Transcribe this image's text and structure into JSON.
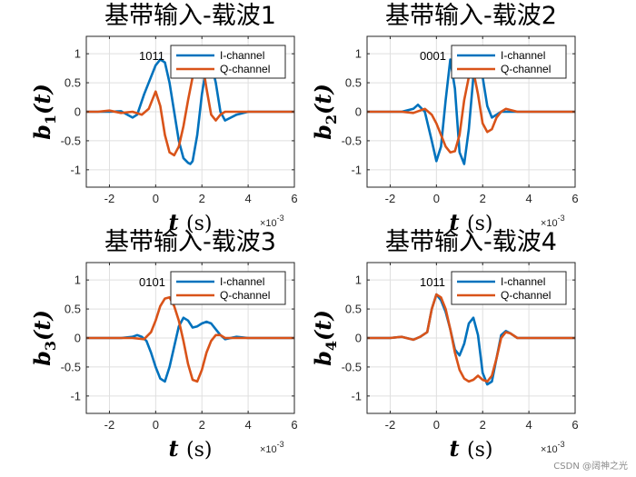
{
  "chart_data": [
    {
      "type": "line",
      "title": "基带输入-载波1",
      "ylabel_main": "b",
      "ylabel_sub": "1",
      "ylabel_arg": "(t)",
      "xlabel_var": "t",
      "xlabel_unit": "(s)",
      "x_exponent": "×10",
      "x_exponent_power": "-3",
      "xlim": [
        -3,
        6
      ],
      "ylim": [
        -1.3,
        1.3
      ],
      "xticks": [
        "-2",
        "0",
        "2",
        "4",
        "6"
      ],
      "yticks": [
        "-1",
        "-0.5",
        "0",
        "0.5",
        "1"
      ],
      "bits_label": "1011",
      "grid": true,
      "legend_position": "top-right",
      "series": [
        {
          "name": "I-channel",
          "color": "#0072BD",
          "x": [
            -3,
            -2.5,
            -2,
            -1.5,
            -1,
            -0.8,
            -0.5,
            -0.2,
            0,
            0.2,
            0.4,
            0.6,
            0.8,
            1.0,
            1.2,
            1.4,
            1.5,
            1.6,
            1.8,
            2.0,
            2.2,
            2.4,
            2.6,
            2.8,
            3.0,
            3.5,
            4,
            5,
            6
          ],
          "y": [
            0,
            0,
            0,
            0.01,
            -0.1,
            -0.05,
            0.3,
            0.6,
            0.8,
            0.9,
            0.85,
            0.5,
            0,
            -0.5,
            -0.8,
            -0.88,
            -0.9,
            -0.85,
            -0.4,
            0.3,
            0.8,
            0.85,
            0.5,
            0,
            -0.15,
            -0.05,
            0,
            0,
            0
          ]
        },
        {
          "name": "Q-channel",
          "color": "#D95319",
          "x": [
            -3,
            -2.5,
            -2,
            -1.5,
            -1,
            -0.6,
            -0.3,
            0,
            0.2,
            0.4,
            0.6,
            0.8,
            1.0,
            1.2,
            1.4,
            1.6,
            1.8,
            2.0,
            2.2,
            2.4,
            2.6,
            2.8,
            3.0,
            3.5,
            4,
            5,
            6
          ],
          "y": [
            0,
            0,
            0.02,
            -0.02,
            0,
            -0.05,
            0.05,
            0.35,
            0.1,
            -0.4,
            -0.7,
            -0.75,
            -0.6,
            -0.25,
            0.2,
            0.6,
            0.95,
            0.9,
            0.4,
            -0.05,
            -0.15,
            -0.05,
            0,
            0,
            0,
            0,
            0
          ]
        }
      ]
    },
    {
      "type": "line",
      "title": "基带输入-载波2",
      "ylabel_main": "b",
      "ylabel_sub": "2",
      "ylabel_arg": "(t)",
      "xlabel_var": "t",
      "xlabel_unit": "(s)",
      "x_exponent": "×10",
      "x_exponent_power": "-3",
      "xlim": [
        -3,
        6
      ],
      "ylim": [
        -1.3,
        1.3
      ],
      "xticks": [
        "-2",
        "0",
        "2",
        "4",
        "6"
      ],
      "yticks": [
        "-1",
        "-0.5",
        "0",
        "0.5",
        "1"
      ],
      "bits_label": "0001",
      "grid": true,
      "legend_position": "top-right",
      "series": [
        {
          "name": "I-channel",
          "color": "#0072BD",
          "x": [
            -3,
            -2.5,
            -2,
            -1.5,
            -1,
            -0.8,
            -0.5,
            -0.2,
            0,
            0.2,
            0.4,
            0.6,
            0.8,
            1.0,
            1.2,
            1.4,
            1.6,
            1.8,
            2.0,
            2.2,
            2.4,
            2.6,
            2.8,
            3.0,
            3.5,
            4,
            5,
            6
          ],
          "y": [
            0,
            0,
            0,
            0,
            0.05,
            0.12,
            0,
            -0.5,
            -0.85,
            -0.6,
            0.2,
            0.9,
            0.4,
            -0.7,
            -0.9,
            -0.3,
            0.6,
            0.95,
            0.6,
            0.1,
            -0.1,
            -0.05,
            0,
            0,
            0,
            0,
            0,
            0
          ]
        },
        {
          "name": "Q-channel",
          "color": "#D95319",
          "x": [
            -3,
            -2.5,
            -2,
            -1.5,
            -1,
            -0.5,
            -0.2,
            0,
            0.2,
            0.4,
            0.6,
            0.8,
            1.0,
            1.2,
            1.4,
            1.6,
            1.8,
            2.0,
            2.2,
            2.4,
            2.6,
            2.8,
            3.0,
            3.5,
            4,
            5,
            6
          ],
          "y": [
            0,
            0,
            0,
            0,
            -0.02,
            0.05,
            -0.05,
            -0.2,
            -0.4,
            -0.6,
            -0.7,
            -0.68,
            -0.4,
            0.2,
            0.6,
            0.7,
            0.3,
            -0.2,
            -0.35,
            -0.3,
            -0.1,
            0,
            0.05,
            0,
            0,
            0,
            0
          ]
        }
      ]
    },
    {
      "type": "line",
      "title": "基带输入-载波3",
      "ylabel_main": "b",
      "ylabel_sub": "3",
      "ylabel_arg": "(t)",
      "xlabel_var": "t",
      "xlabel_unit": "(s)",
      "x_exponent": "×10",
      "x_exponent_power": "-3",
      "xlim": [
        -3,
        6
      ],
      "ylim": [
        -1.3,
        1.3
      ],
      "xticks": [
        "-2",
        "0",
        "2",
        "4",
        "6"
      ],
      "yticks": [
        "-1",
        "-0.5",
        "0",
        "0.5",
        "1"
      ],
      "bits_label": "0101",
      "grid": true,
      "legend_position": "top-right",
      "series": [
        {
          "name": "I-channel",
          "color": "#0072BD",
          "x": [
            -3,
            -2.5,
            -2,
            -1.5,
            -1,
            -0.8,
            -0.6,
            -0.4,
            -0.2,
            0,
            0.2,
            0.4,
            0.6,
            0.8,
            1.0,
            1.2,
            1.4,
            1.6,
            1.8,
            2.0,
            2.2,
            2.4,
            2.6,
            2.8,
            3.0,
            3.5,
            4,
            5,
            6
          ],
          "y": [
            0,
            0,
            0,
            0,
            0.02,
            0.05,
            0.02,
            -0.05,
            -0.25,
            -0.5,
            -0.7,
            -0.75,
            -0.5,
            -0.15,
            0.2,
            0.35,
            0.3,
            0.18,
            0.2,
            0.25,
            0.28,
            0.25,
            0.15,
            0.05,
            -0.02,
            0.02,
            0,
            0,
            0
          ]
        },
        {
          "name": "Q-channel",
          "color": "#D95319",
          "x": [
            -3,
            -2.5,
            -2,
            -1.5,
            -1,
            -0.5,
            -0.2,
            0,
            0.2,
            0.4,
            0.6,
            0.8,
            1.0,
            1.2,
            1.4,
            1.6,
            1.8,
            2.0,
            2.2,
            2.4,
            2.6,
            2.8,
            3.0,
            3.5,
            4,
            5,
            6
          ],
          "y": [
            0,
            0,
            0,
            0,
            0,
            -0.02,
            0.1,
            0.3,
            0.55,
            0.68,
            0.7,
            0.55,
            0.3,
            -0.05,
            -0.45,
            -0.72,
            -0.75,
            -0.55,
            -0.25,
            -0.05,
            0.05,
            0.05,
            0,
            0,
            0,
            0,
            0
          ]
        }
      ]
    },
    {
      "type": "line",
      "title": "基带输入-载波4",
      "ylabel_main": "b",
      "ylabel_sub": "4",
      "ylabel_arg": "(t)",
      "xlabel_var": "t",
      "xlabel_unit": "(s)",
      "x_exponent": "×10",
      "x_exponent_power": "-3",
      "xlim": [
        -3,
        6
      ],
      "ylim": [
        -1.3,
        1.3
      ],
      "xticks": [
        "-2",
        "0",
        "2",
        "4",
        "6"
      ],
      "yticks": [
        "-1",
        "-0.5",
        "0",
        "0.5",
        "1"
      ],
      "bits_label": "1011",
      "grid": true,
      "legend_position": "top-right",
      "series": [
        {
          "name": "I-channel",
          "color": "#0072BD",
          "x": [
            -3,
            -2.5,
            -2,
            -1.5,
            -1,
            -0.7,
            -0.4,
            -0.2,
            0,
            0.2,
            0.4,
            0.6,
            0.8,
            1.0,
            1.2,
            1.4,
            1.6,
            1.8,
            2.0,
            2.2,
            2.4,
            2.6,
            2.8,
            3.0,
            3.2,
            3.5,
            4,
            5,
            6
          ],
          "y": [
            0,
            0,
            0,
            0.02,
            -0.03,
            0.02,
            0.1,
            0.5,
            0.75,
            0.65,
            0.45,
            0.15,
            -0.2,
            -0.3,
            -0.1,
            0.25,
            0.35,
            0.05,
            -0.6,
            -0.8,
            -0.75,
            -0.35,
            0.05,
            0.12,
            0.08,
            0,
            0,
            0,
            0
          ]
        },
        {
          "name": "Q-channel",
          "color": "#D95319",
          "x": [
            -3,
            -2.5,
            -2,
            -1.5,
            -1,
            -0.7,
            -0.4,
            -0.2,
            0,
            0.2,
            0.4,
            0.6,
            0.8,
            1.0,
            1.2,
            1.4,
            1.6,
            1.8,
            2.0,
            2.2,
            2.4,
            2.6,
            2.8,
            3.0,
            3.2,
            3.5,
            4,
            5,
            6
          ],
          "y": [
            0,
            0,
            0,
            0.02,
            -0.03,
            0.02,
            0.1,
            0.5,
            0.75,
            0.7,
            0.5,
            0.15,
            -0.25,
            -0.55,
            -0.7,
            -0.75,
            -0.72,
            -0.65,
            -0.72,
            -0.75,
            -0.65,
            -0.35,
            0,
            0.1,
            0.08,
            0,
            0,
            0,
            0
          ]
        }
      ]
    }
  ],
  "watermark": "CSDN @阔神之光"
}
